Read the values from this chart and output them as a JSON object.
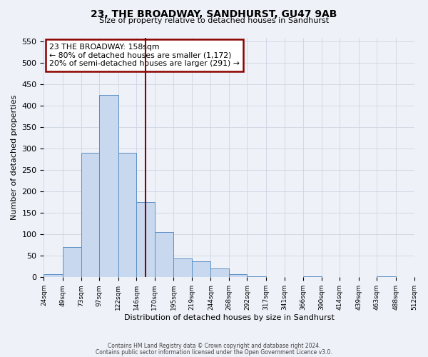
{
  "title": "23, THE BROADWAY, SANDHURST, GU47 9AB",
  "subtitle": "Size of property relative to detached houses in Sandhurst",
  "xlabel": "Distribution of detached houses by size in Sandhurst",
  "ylabel": "Number of detached properties",
  "bar_values": [
    8,
    70,
    290,
    425,
    290,
    175,
    105,
    44,
    38,
    20,
    7,
    2,
    1,
    0,
    2,
    0,
    0,
    0,
    2,
    0
  ],
  "bin_edges": [
    24,
    49,
    73,
    97,
    122,
    146,
    170,
    195,
    219,
    244,
    268,
    292,
    317,
    341,
    366,
    390,
    414,
    439,
    463,
    488,
    512
  ],
  "bin_labels": [
    "24sqm",
    "49sqm",
    "73sqm",
    "97sqm",
    "122sqm",
    "146sqm",
    "170sqm",
    "195sqm",
    "219sqm",
    "244sqm",
    "268sqm",
    "292sqm",
    "317sqm",
    "341sqm",
    "366sqm",
    "390sqm",
    "414sqm",
    "439sqm",
    "463sqm",
    "488sqm",
    "512sqm"
  ],
  "bar_color": "#c8d9ef",
  "bar_edge_color": "#5b8ec4",
  "grid_color": "#cdd5e3",
  "background_color": "#eef1f8",
  "vline_x": 158,
  "vline_color": "#8b0000",
  "annotation_title": "23 THE BROADWAY: 158sqm",
  "annotation_line1": "← 80% of detached houses are smaller (1,172)",
  "annotation_line2": "20% of semi-detached houses are larger (291) →",
  "annotation_box_edgecolor": "#8b0000",
  "ylim": [
    0,
    560
  ],
  "yticks": [
    0,
    50,
    100,
    150,
    200,
    250,
    300,
    350,
    400,
    450,
    500,
    550
  ],
  "footer1": "Contains HM Land Registry data © Crown copyright and database right 2024.",
  "footer2": "Contains public sector information licensed under the Open Government Licence v3.0."
}
